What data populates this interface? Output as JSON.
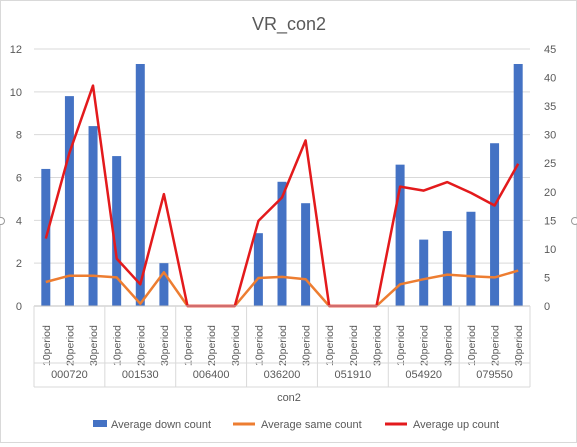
{
  "chart_data": {
    "type": "bar",
    "title": "VR_con2",
    "xlabel": "con2",
    "groups": [
      "000720",
      "001530",
      "006400",
      "036200",
      "051910",
      "054920",
      "079550"
    ],
    "periods": [
      "10period",
      "20period",
      "30period"
    ],
    "categories": [
      "000720 10period",
      "000720 20period",
      "000720 30period",
      "001530 10period",
      "001530 20period",
      "001530 30period",
      "006400 10period",
      "006400 20period",
      "006400 30period",
      "036200 10period",
      "036200 20period",
      "036200 30period",
      "051910 10period",
      "051910 20period",
      "051910 30period",
      "054920 10period",
      "054920 20period",
      "054920 30period",
      "079550 10period",
      "079550 20period",
      "079550 30period"
    ],
    "y_left": {
      "min": 0,
      "max": 12,
      "ticks": [
        0,
        2,
        4,
        6,
        8,
        10,
        12
      ]
    },
    "y_right": {
      "min": 0,
      "max": 45,
      "ticks": [
        0,
        5,
        10,
        15,
        20,
        25,
        30,
        35,
        40,
        45
      ]
    },
    "series": [
      {
        "name": "Average down count",
        "type": "bar",
        "axis": "left",
        "color": "#4472c4",
        "values": [
          6.4,
          9.8,
          8.4,
          7.0,
          11.3,
          2.0,
          0,
          0,
          0,
          3.4,
          5.8,
          4.8,
          0,
          0,
          0,
          6.6,
          3.1,
          3.5,
          4.4,
          7.6,
          11.3
        ]
      },
      {
        "name": "Average same count",
        "type": "line",
        "axis": "right",
        "color": "#ed7d31",
        "values": [
          4.2,
          5.3,
          5.3,
          5.0,
          0.4,
          5.9,
          0,
          0,
          0,
          4.9,
          5.1,
          4.7,
          0,
          0,
          0,
          3.8,
          4.7,
          5.5,
          5.2,
          5.0,
          6.2
        ]
      },
      {
        "name": "Average up count",
        "type": "line",
        "axis": "right",
        "color": "#e31a1c",
        "values": [
          11.8,
          26.8,
          38.6,
          8.3,
          3.8,
          19.6,
          0,
          0,
          0,
          14.9,
          19.0,
          29.0,
          0,
          0,
          0,
          20.9,
          20.2,
          21.7,
          19.8,
          17.6,
          24.9
        ]
      }
    ],
    "grid": true,
    "legend": "bottom"
  }
}
